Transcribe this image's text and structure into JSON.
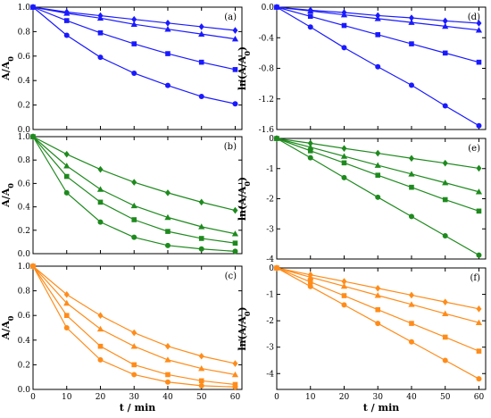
{
  "chart_data": [
    {
      "panel": "(a)",
      "type": "line",
      "color": "#1a1aff",
      "x": [
        0,
        10,
        20,
        30,
        40,
        50,
        60
      ],
      "ylim": [
        0,
        1
      ],
      "yticks": [
        0,
        0.2,
        0.4,
        0.6,
        0.8,
        1.0
      ],
      "ytick_labels": [
        "0.0",
        "0.2",
        "0.4",
        "0.6",
        "0.8",
        "1.0"
      ],
      "xticks": [],
      "xtick_labels": [],
      "ylabel": "A/A",
      "ylabel_sub": "0",
      "xlabel": "",
      "series": [
        {
          "marker": "diamond",
          "values": [
            1.0,
            0.96,
            0.93,
            0.9,
            0.87,
            0.84,
            0.81
          ]
        },
        {
          "marker": "triangle",
          "values": [
            1.0,
            0.95,
            0.91,
            0.86,
            0.82,
            0.78,
            0.74
          ]
        },
        {
          "marker": "square",
          "values": [
            1.0,
            0.89,
            0.79,
            0.7,
            0.62,
            0.55,
            0.49
          ]
        },
        {
          "marker": "circle",
          "values": [
            1.0,
            0.77,
            0.59,
            0.46,
            0.36,
            0.27,
            0.21
          ]
        }
      ]
    },
    {
      "panel": "(b)",
      "type": "line",
      "color": "#1e8a1e",
      "x": [
        0,
        10,
        20,
        30,
        40,
        50,
        60
      ],
      "ylim": [
        0,
        1
      ],
      "yticks": [
        0,
        0.2,
        0.4,
        0.6,
        0.8,
        1.0
      ],
      "ytick_labels": [
        "0.0",
        "0.2",
        "0.4",
        "0.6",
        "0.8",
        "1.0"
      ],
      "xticks": [],
      "xtick_labels": [],
      "ylabel": "A/A",
      "ylabel_sub": "0",
      "xlabel": "",
      "series": [
        {
          "marker": "diamond",
          "values": [
            1.0,
            0.85,
            0.72,
            0.61,
            0.52,
            0.44,
            0.37
          ]
        },
        {
          "marker": "triangle",
          "values": [
            1.0,
            0.75,
            0.55,
            0.41,
            0.31,
            0.23,
            0.17
          ]
        },
        {
          "marker": "square",
          "values": [
            1.0,
            0.66,
            0.44,
            0.29,
            0.19,
            0.13,
            0.09
          ]
        },
        {
          "marker": "circle",
          "values": [
            1.0,
            0.52,
            0.27,
            0.14,
            0.07,
            0.04,
            0.02
          ]
        }
      ]
    },
    {
      "panel": "(c)",
      "type": "line",
      "color": "#ff8c1a",
      "x": [
        0,
        10,
        20,
        30,
        40,
        50,
        60
      ],
      "ylim": [
        0,
        1
      ],
      "yticks": [
        0,
        0.2,
        0.4,
        0.6,
        0.8,
        1.0
      ],
      "ytick_labels": [
        "0.0",
        "0.2",
        "0.4",
        "0.6",
        "0.8",
        "1.0"
      ],
      "xticks": [
        0,
        10,
        20,
        30,
        40,
        50,
        60
      ],
      "xtick_labels": [
        "0",
        "10",
        "20",
        "30",
        "40",
        "50",
        "60"
      ],
      "ylabel": "A/A",
      "ylabel_sub": "0",
      "xlabel": "t / min",
      "series": [
        {
          "marker": "diamond",
          "values": [
            1.0,
            0.77,
            0.6,
            0.46,
            0.35,
            0.27,
            0.21
          ]
        },
        {
          "marker": "triangle",
          "values": [
            1.0,
            0.7,
            0.49,
            0.35,
            0.24,
            0.17,
            0.12
          ]
        },
        {
          "marker": "square",
          "values": [
            1.0,
            0.6,
            0.35,
            0.2,
            0.12,
            0.07,
            0.04
          ]
        },
        {
          "marker": "circle",
          "values": [
            1.0,
            0.5,
            0.24,
            0.12,
            0.06,
            0.03,
            0.02
          ]
        }
      ]
    },
    {
      "panel": "(d)",
      "type": "line",
      "color": "#1a1aff",
      "x": [
        0,
        10,
        20,
        30,
        40,
        50,
        60
      ],
      "ylim": [
        -1.6,
        0
      ],
      "yticks": [
        0,
        -0.4,
        -0.8,
        -1.2,
        -1.6
      ],
      "ytick_labels": [
        "0.0",
        "-0.4",
        "-0.8",
        "-1.2",
        "-1.6"
      ],
      "xticks": [],
      "xtick_labels": [],
      "ylabel": "ln(A/A",
      "ylabel_sub": "0",
      "ylabel_tail": ")",
      "xlabel": "",
      "series": [
        {
          "marker": "diamond",
          "values": [
            0,
            -0.04,
            -0.07,
            -0.11,
            -0.14,
            -0.18,
            -0.21
          ]
        },
        {
          "marker": "triangle",
          "values": [
            0,
            -0.05,
            -0.1,
            -0.15,
            -0.2,
            -0.25,
            -0.3
          ]
        },
        {
          "marker": "square",
          "values": [
            0,
            -0.12,
            -0.24,
            -0.36,
            -0.48,
            -0.6,
            -0.72
          ]
        },
        {
          "marker": "circle",
          "values": [
            0,
            -0.26,
            -0.53,
            -0.78,
            -1.02,
            -1.29,
            -1.55
          ]
        }
      ]
    },
    {
      "panel": "(e)",
      "type": "line",
      "color": "#1e8a1e",
      "x": [
        0,
        10,
        20,
        30,
        40,
        50,
        60
      ],
      "ylim": [
        -4,
        0
      ],
      "yticks": [
        0,
        -1,
        -2,
        -3,
        -4
      ],
      "ytick_labels": [
        "0",
        "-1",
        "-2",
        "-3",
        "-4"
      ],
      "xticks": [],
      "xtick_labels": [],
      "ylabel": "ln(A/A",
      "ylabel_sub": "0",
      "ylabel_tail": ")",
      "xlabel": "",
      "series": [
        {
          "marker": "diamond",
          "values": [
            0,
            -0.16,
            -0.33,
            -0.49,
            -0.66,
            -0.82,
            -0.99
          ]
        },
        {
          "marker": "triangle",
          "values": [
            0,
            -0.29,
            -0.59,
            -0.89,
            -1.18,
            -1.47,
            -1.77
          ]
        },
        {
          "marker": "square",
          "values": [
            0,
            -0.41,
            -0.81,
            -1.22,
            -1.62,
            -2.03,
            -2.41
          ]
        },
        {
          "marker": "circle",
          "values": [
            0,
            -0.64,
            -1.3,
            -1.95,
            -2.59,
            -3.23,
            -3.87
          ]
        }
      ]
    },
    {
      "panel": "(f)",
      "type": "line",
      "color": "#ff8c1a",
      "x": [
        0,
        10,
        20,
        30,
        40,
        50,
        60
      ],
      "ylim": [
        -4.6,
        0
      ],
      "yticks": [
        0,
        -1,
        -2,
        -3,
        -4
      ],
      "ytick_labels": [
        "0",
        "-1",
        "-2",
        "-3",
        "-4"
      ],
      "xticks": [
        0,
        10,
        20,
        30,
        40,
        50,
        60
      ],
      "xtick_labels": [
        "0",
        "10",
        "20",
        "30",
        "40",
        "50",
        "60"
      ],
      "ylabel": "ln(A/A",
      "ylabel_sub": "0",
      "ylabel_tail": ")",
      "xlabel": "t / min",
      "series": [
        {
          "marker": "diamond",
          "values": [
            0,
            -0.26,
            -0.51,
            -0.77,
            -1.03,
            -1.29,
            -1.55
          ]
        },
        {
          "marker": "triangle",
          "values": [
            0,
            -0.35,
            -0.69,
            -1.04,
            -1.38,
            -1.73,
            -2.07
          ]
        },
        {
          "marker": "square",
          "values": [
            0,
            -0.53,
            -1.05,
            -1.58,
            -2.1,
            -2.62,
            -3.15
          ]
        },
        {
          "marker": "circle",
          "values": [
            0,
            -0.7,
            -1.4,
            -2.1,
            -2.8,
            -3.5,
            -4.2
          ]
        }
      ]
    }
  ]
}
